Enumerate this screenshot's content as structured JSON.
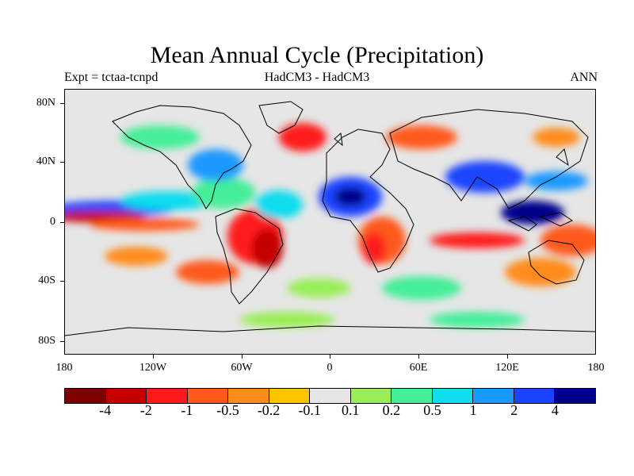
{
  "title": "Mean Annual Cycle (Precipitation)",
  "subtitle_left": "Expt = tctaa-tcnpd",
  "subtitle_center": "HadCM3 - HadCM3",
  "subtitle_right": "ANN",
  "y_axis_labels": [
    "80N",
    "40N",
    "0",
    "40S",
    "80S"
  ],
  "x_axis_labels": [
    "180",
    "120W",
    "60W",
    "0",
    "60E",
    "120E",
    "180"
  ],
  "colorbar": {
    "colors": [
      "#7f0000",
      "#c40000",
      "#ff1a1a",
      "#ff5a1a",
      "#ff8c1a",
      "#ffc400",
      "#e6e6e6",
      "#99ee55",
      "#44ee99",
      "#11ddee",
      "#1a99ff",
      "#1a44ff",
      "#00008b"
    ],
    "labels": [
      "-4",
      "-2",
      "-1",
      "-0.5",
      "-0.2",
      "-0.1",
      "0.1",
      "0.2",
      "0.5",
      "1",
      "2",
      "4"
    ]
  },
  "map": {
    "background_color": "#e6e6e6",
    "coastline_color": "#000000"
  }
}
